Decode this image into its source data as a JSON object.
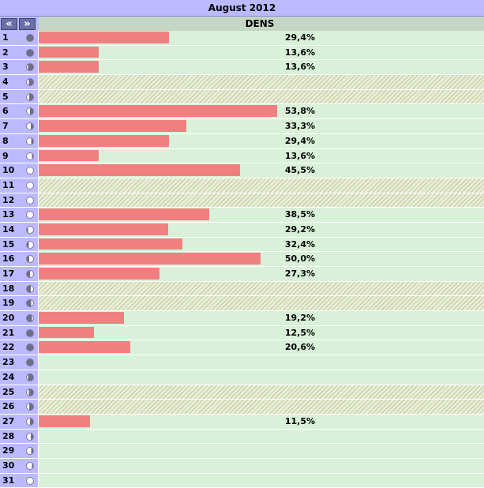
{
  "title": "August 2012",
  "nav": {
    "prev_label": "«",
    "next_label": "»",
    "prev_icon": "double-chevron-left-icon",
    "next_icon": "double-chevron-right-icon"
  },
  "column_header": "DENS",
  "colors": {
    "header": "#bdb9ff",
    "bar": "#f08080",
    "cell": "#d9f0d9",
    "column_header": "#c5d6c5"
  },
  "chart_data": {
    "type": "bar",
    "orientation": "horizontal",
    "scale_max": 53.8,
    "categories": [
      "1",
      "2",
      "3",
      "4",
      "5",
      "6",
      "7",
      "8",
      "9",
      "10",
      "11",
      "12",
      "13",
      "14",
      "15",
      "16",
      "17",
      "18",
      "19",
      "20",
      "21",
      "22",
      "23",
      "24",
      "25",
      "26",
      "27",
      "28",
      "29",
      "30",
      "31"
    ],
    "values": [
      29.4,
      13.6,
      13.6,
      null,
      null,
      53.8,
      33.3,
      29.4,
      13.6,
      45.5,
      null,
      null,
      38.5,
      29.2,
      32.4,
      50.0,
      27.3,
      null,
      null,
      19.2,
      12.5,
      20.6,
      null,
      null,
      null,
      null,
      11.5,
      null,
      null,
      null,
      null
    ],
    "labels": [
      "29,4%",
      "13,6%",
      "13,6%",
      "",
      "",
      "53,8%",
      "33,3%",
      "29,4%",
      "13,6%",
      "45,5%",
      "",
      "",
      "38,5%",
      "29,2%",
      "32,4%",
      "50,0%",
      "27,3%",
      "",
      "",
      "19,2%",
      "12,5%",
      "20,6%",
      "",
      "",
      "",
      "",
      "11,5%",
      "",
      "",
      "",
      ""
    ],
    "hatched": [
      false,
      false,
      false,
      true,
      true,
      false,
      false,
      false,
      false,
      false,
      true,
      true,
      false,
      false,
      false,
      false,
      false,
      true,
      true,
      false,
      false,
      false,
      false,
      false,
      true,
      true,
      false,
      false,
      false,
      false,
      false
    ],
    "moon_phase": [
      0.55,
      0.55,
      0.6,
      0.65,
      0.7,
      0.75,
      0.8,
      0.85,
      0.9,
      0.95,
      1.0,
      1.0,
      0.05,
      0.1,
      0.15,
      0.2,
      0.25,
      0.3,
      0.35,
      0.4,
      0.45,
      0.5,
      0.55,
      0.6,
      0.65,
      0.7,
      0.75,
      0.8,
      0.85,
      0.9,
      0.95
    ]
  }
}
